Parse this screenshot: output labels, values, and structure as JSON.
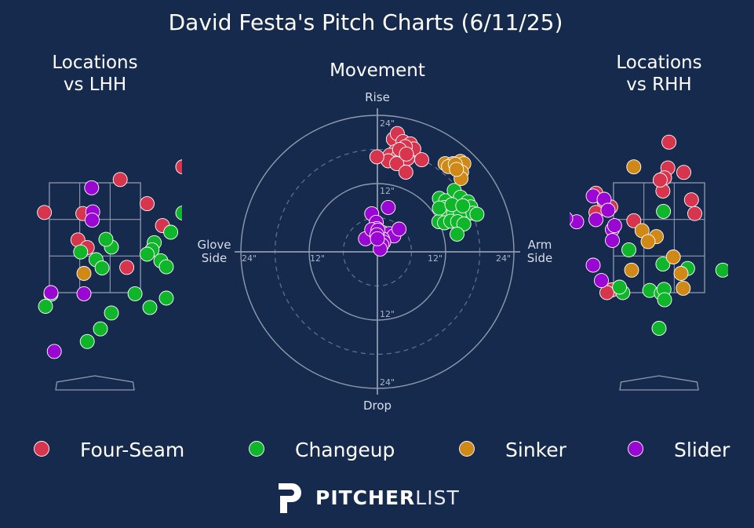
{
  "page": {
    "title": "David Festa's Pitch Charts (6/11/25)"
  },
  "colors": {
    "background": "#152a4c",
    "four_seam": "#d7344e",
    "changeup": "#0fb62a",
    "sinker": "#d08916",
    "slider": "#9a06d2",
    "grid": "#8f9ab0"
  },
  "legend": [
    {
      "key": "four_seam",
      "label": "Four-Seam"
    },
    {
      "key": "changeup",
      "label": "Changeup"
    },
    {
      "key": "sinker",
      "label": "Sinker"
    },
    {
      "key": "slider",
      "label": "Slider"
    }
  ],
  "logo": {
    "brand_bold": "PITCHER",
    "brand_light": "LIST",
    "icon": "pitcherlist-p-logo"
  },
  "chart_data": [
    {
      "type": "scatter",
      "title": "Locations\nvs LHH",
      "xlim": [
        -2.0,
        2.0
      ],
      "ylim": [
        0.5,
        4.8
      ],
      "zone": {
        "x": [
          -0.83,
          0.83
        ],
        "y": [
          1.5,
          3.5
        ]
      },
      "points": {
        "four_seam": [
          [
            1.6,
            3.79
          ],
          [
            0.46,
            3.56
          ],
          [
            -0.92,
            2.96
          ],
          [
            -0.22,
            2.94
          ],
          [
            0.95,
            3.12
          ],
          [
            1.23,
            2.72
          ],
          [
            -0.31,
            2.46
          ],
          [
            -0.14,
            2.32
          ],
          [
            1.73,
            2.94
          ],
          [
            0.58,
            1.96
          ],
          [
            -1.47,
            1.93
          ]
        ],
        "changeup": [
          [
            1.6,
            2.95
          ],
          [
            1.38,
            2.6
          ],
          [
            1.08,
            2.41
          ],
          [
            1.9,
            2.53
          ],
          [
            1.04,
            2.28
          ],
          [
            0.95,
            2.2
          ],
          [
            -0.26,
            2.24
          ],
          [
            0.3,
            2.33
          ],
          [
            0.2,
            2.47
          ],
          [
            0.02,
            2.1
          ],
          [
            0.13,
            1.95
          ],
          [
            1.2,
            2.08
          ],
          [
            1.3,
            1.97
          ],
          [
            -0.8,
            1.47
          ],
          [
            0.73,
            1.48
          ],
          [
            1.3,
            1.4
          ],
          [
            -0.9,
            1.25
          ],
          [
            1.0,
            1.23
          ],
          [
            0.3,
            1.13
          ],
          [
            0.1,
            0.84
          ],
          [
            -0.14,
            0.61
          ]
        ],
        "sinker": [
          [
            -0.2,
            1.85
          ]
        ],
        "slider": [
          [
            -0.06,
            3.41
          ],
          [
            -0.04,
            2.97
          ],
          [
            -0.05,
            2.82
          ],
          [
            -1.38,
            2.29
          ],
          [
            -0.8,
            1.5
          ],
          [
            -0.2,
            1.48
          ],
          [
            -0.74,
            0.43
          ]
        ]
      }
    },
    {
      "type": "scatter",
      "subtype": "polar",
      "title": "Movement",
      "xlabel_left": "Glove\nSide",
      "xlabel_right": "Arm\nSide",
      "ylabel_top": "Rise",
      "ylabel_bottom": "Drop",
      "tick_labels": [
        "12\"",
        "24\""
      ],
      "range": 24,
      "points": {
        "four_seam": [
          [
            2.8,
            19.8
          ],
          [
            3.5,
            20.8
          ],
          [
            4.5,
            19.4
          ],
          [
            5.8,
            19.0
          ],
          [
            6.4,
            18.1
          ],
          [
            4.9,
            18.5
          ],
          [
            3.1,
            17.6
          ],
          [
            2.2,
            17.0
          ],
          [
            3.7,
            16.8
          ],
          [
            1.9,
            16.0
          ],
          [
            4.1,
            16.2
          ],
          [
            5.3,
            16.4
          ],
          [
            3.4,
            15.5
          ],
          [
            -0.1,
            16.7
          ],
          [
            5.0,
            14.0
          ],
          [
            7.8,
            16.2
          ],
          [
            3.9,
            18.0
          ],
          [
            5.1,
            17.2
          ]
        ],
        "changeup": [
          [
            10.9,
            9.4
          ],
          [
            12.0,
            9.0
          ],
          [
            13.5,
            10.8
          ],
          [
            14.6,
            9.6
          ],
          [
            15.9,
            8.8
          ],
          [
            11.8,
            7.8
          ],
          [
            12.9,
            7.7
          ],
          [
            14.2,
            7.5
          ],
          [
            16.4,
            7.9
          ],
          [
            12.1,
            6.4
          ],
          [
            13.4,
            6.7
          ],
          [
            14.6,
            6.9
          ],
          [
            10.8,
            5.3
          ],
          [
            11.8,
            5.1
          ],
          [
            12.9,
            5.4
          ],
          [
            14.1,
            5.3
          ],
          [
            16.8,
            6.8
          ],
          [
            17.5,
            6.6
          ],
          [
            15.2,
            4.9
          ],
          [
            14.0,
            3.1
          ],
          [
            10.9,
            7.7
          ],
          [
            13.1,
            8.3
          ],
          [
            15.0,
            8.1
          ]
        ],
        "sinker": [
          [
            11.9,
            15.5
          ],
          [
            13.3,
            15.5
          ],
          [
            14.6,
            15.9
          ],
          [
            15.2,
            15.5
          ],
          [
            14.8,
            14.0
          ],
          [
            14.7,
            12.9
          ],
          [
            12.5,
            15.0
          ],
          [
            13.7,
            15.4
          ],
          [
            13.9,
            14.5
          ]
        ],
        "slider": [
          [
            -1.0,
            6.7
          ],
          [
            1.9,
            7.8
          ],
          [
            -0.2,
            5.2
          ],
          [
            -2.1,
            2.3
          ],
          [
            -0.1,
            4.1
          ],
          [
            0.9,
            3.4
          ],
          [
            2.1,
            3.2
          ],
          [
            2.9,
            2.8
          ],
          [
            3.8,
            4.0
          ],
          [
            0.9,
            2.3
          ],
          [
            1.1,
            1.7
          ],
          [
            0.8,
            1.2
          ],
          [
            0.5,
            0.5
          ],
          [
            -1.0,
            3.9
          ],
          [
            0.1,
            3.8
          ],
          [
            -0.1,
            3.0
          ],
          [
            -0.0,
            2.3
          ]
        ]
      }
    },
    {
      "type": "scatter",
      "title": "Locations\nvs RHH",
      "xlim": [
        -2.0,
        2.0
      ],
      "ylim": [
        0.5,
        4.8
      ],
      "zone": {
        "x": [
          -0.83,
          0.83
        ],
        "y": [
          1.5,
          3.5
        ]
      },
      "points": {
        "four_seam": [
          [
            0.18,
            4.24
          ],
          [
            0.16,
            3.77
          ],
          [
            0.45,
            3.69
          ],
          [
            0.1,
            3.59
          ],
          [
            0.07,
            3.35
          ],
          [
            -1.15,
            3.31
          ],
          [
            -1.0,
            3.16
          ],
          [
            -0.88,
            3.06
          ],
          [
            0.59,
            3.19
          ],
          [
            -1.15,
            2.96
          ],
          [
            0.65,
            2.94
          ],
          [
            -0.46,
            2.81
          ],
          [
            -0.86,
            1.55
          ],
          [
            -0.95,
            1.5
          ],
          [
            0.02,
            3.55
          ]
        ],
        "changeup": [
          [
            0.08,
            2.98
          ],
          [
            -0.55,
            2.28
          ],
          [
            0.07,
            2.02
          ],
          [
            0.52,
            1.94
          ],
          [
            1.16,
            1.91
          ],
          [
            -0.17,
            1.54
          ],
          [
            0.04,
            1.49
          ],
          [
            0.09,
            1.56
          ],
          [
            0.1,
            1.37
          ],
          [
            -0.66,
            1.5
          ],
          [
            0.0,
            0.85
          ],
          [
            -0.72,
            1.6
          ]
        ],
        "sinker": [
          [
            -0.46,
            3.79
          ],
          [
            -0.31,
            2.63
          ],
          [
            -0.05,
            2.52
          ],
          [
            -0.2,
            2.43
          ],
          [
            0.26,
            2.15
          ],
          [
            -0.5,
            1.91
          ],
          [
            0.4,
            1.85
          ],
          [
            0.44,
            1.58
          ]
        ],
        "slider": [
          [
            -1.2,
            3.26
          ],
          [
            -1.0,
            3.2
          ],
          [
            -0.93,
            3.0
          ],
          [
            -2.0,
            2.93
          ],
          [
            -1.5,
            2.79
          ],
          [
            -1.15,
            2.83
          ],
          [
            -0.85,
            2.65
          ],
          [
            -0.85,
            2.45
          ],
          [
            -1.2,
            2.0
          ],
          [
            -1.05,
            1.72
          ],
          [
            -0.81,
            2.72
          ],
          [
            -1.7,
            2.85
          ]
        ]
      }
    }
  ]
}
